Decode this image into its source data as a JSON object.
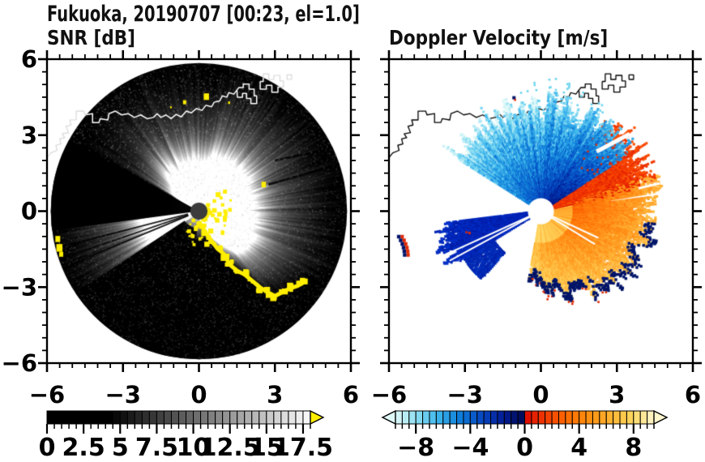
{
  "title": "Fukuoka, 20190707 [00:23, el=1.0]",
  "panels": {
    "left_label": "SNR [dB]",
    "right_label": "Doppler Velocity [m/s]"
  },
  "axes": {
    "range": [
      -6,
      6
    ],
    "major_ticks": [
      -6,
      -3,
      0,
      3,
      6
    ],
    "tick_labels": [
      "−6",
      "−3",
      "0",
      "3",
      "6"
    ],
    "minor_step": 0.5
  },
  "colorbars": {
    "snr": {
      "min": 0,
      "max": 18,
      "segments": 36,
      "tick_values": [
        0,
        2.5,
        5,
        7.5,
        10,
        12.5,
        15,
        17.5
      ],
      "tick_labels": [
        "0",
        "2.5",
        "5",
        "7.5",
        "10",
        "12.5",
        "15",
        "17.5"
      ],
      "over_arrow_color": "#ffee00"
    },
    "velocity": {
      "min": -9.5,
      "max": 9.5,
      "segments": 38,
      "tick_values": [
        -8,
        -4,
        0,
        4,
        8
      ],
      "tick_labels": [
        "−8",
        "−4",
        "0",
        "4",
        "8"
      ],
      "neg_stations": [
        "#dff8f8",
        "#8adef2",
        "#3ab4ec",
        "#0e7cd8",
        "#0748c2",
        "#021c96",
        "#000a50"
      ],
      "pos_stations": [
        "#dc0800",
        "#f23c00",
        "#ff6c00",
        "#ff9010",
        "#ffb430",
        "#ffd75e",
        "#fff6cc"
      ]
    }
  },
  "coastline": {
    "main": [
      [
        -6.3,
        1.75
      ],
      [
        -5.85,
        2.3
      ],
      [
        -5.6,
        2.4
      ],
      [
        -5.65,
        2.6
      ],
      [
        -5.45,
        2.65
      ],
      [
        -5.5,
        2.85
      ],
      [
        -5.3,
        2.9
      ],
      [
        -5.4,
        3.05
      ],
      [
        -5.15,
        3.1
      ],
      [
        -5.25,
        3.35
      ],
      [
        -5.05,
        3.4
      ],
      [
        -5.1,
        3.6
      ],
      [
        -4.85,
        3.6
      ],
      [
        -4.85,
        3.95
      ],
      [
        -4.55,
        3.95
      ],
      [
        -4.5,
        3.8
      ],
      [
        -4.2,
        3.85
      ],
      [
        -4.2,
        3.5
      ],
      [
        -3.95,
        3.5
      ],
      [
        -3.9,
        3.65
      ],
      [
        -3.6,
        3.6
      ],
      [
        -3.55,
        3.85
      ],
      [
        -3.3,
        3.95
      ],
      [
        -3.05,
        3.8
      ],
      [
        -2.8,
        3.85
      ],
      [
        -2.55,
        3.7
      ],
      [
        -2.3,
        3.8
      ],
      [
        -2.05,
        3.65
      ],
      [
        -1.8,
        3.7
      ],
      [
        -1.65,
        3.85
      ],
      [
        -1.5,
        3.7
      ],
      [
        -1.3,
        3.8
      ],
      [
        -1.1,
        3.65
      ],
      [
        -0.9,
        3.82
      ],
      [
        -0.7,
        3.72
      ],
      [
        -0.5,
        3.95
      ],
      [
        -0.3,
        3.88
      ],
      [
        -0.1,
        4.05
      ],
      [
        0.12,
        3.98
      ],
      [
        0.28,
        4.18
      ],
      [
        0.5,
        4.12
      ],
      [
        0.6,
        4.3
      ],
      [
        0.82,
        4.35
      ],
      [
        0.92,
        4.55
      ],
      [
        1.1,
        4.5
      ],
      [
        1.18,
        4.68
      ],
      [
        1.38,
        4.62
      ],
      [
        1.5,
        4.78
      ]
    ],
    "ports": [
      [
        [
          1.5,
          4.78
        ],
        [
          1.52,
          4.5
        ],
        [
          1.72,
          4.5
        ],
        [
          1.72,
          4.65
        ],
        [
          1.88,
          4.65
        ],
        [
          1.88,
          4.45
        ],
        [
          2.05,
          4.45
        ],
        [
          2.05,
          4.25
        ],
        [
          2.28,
          4.25
        ],
        [
          2.28,
          4.55
        ],
        [
          2.18,
          4.55
        ],
        [
          2.18,
          4.82
        ],
        [
          1.98,
          4.82
        ],
        [
          1.98,
          5.02
        ],
        [
          1.75,
          5.02
        ],
        [
          1.75,
          4.88
        ],
        [
          1.58,
          4.88
        ],
        [
          1.5,
          4.78
        ]
      ],
      [
        [
          2.42,
          5.12
        ],
        [
          2.42,
          4.82
        ],
        [
          2.66,
          4.82
        ],
        [
          2.66,
          4.97
        ],
        [
          2.88,
          4.97
        ],
        [
          2.88,
          4.7
        ],
        [
          3.12,
          4.7
        ],
        [
          3.12,
          4.9
        ],
        [
          3.34,
          4.9
        ],
        [
          3.34,
          5.14
        ],
        [
          3.2,
          5.14
        ],
        [
          3.2,
          5.36
        ],
        [
          2.96,
          5.36
        ],
        [
          2.96,
          5.2
        ],
        [
          2.76,
          5.2
        ],
        [
          2.76,
          5.42
        ],
        [
          2.54,
          5.42
        ],
        [
          2.54,
          5.12
        ],
        [
          2.42,
          5.12
        ]
      ],
      [
        [
          3.48,
          5.2
        ],
        [
          3.66,
          5.2
        ],
        [
          3.66,
          5.38
        ],
        [
          3.48,
          5.38
        ],
        [
          3.48,
          5.2
        ]
      ]
    ]
  },
  "chart_data": [
    {
      "type": "heatmap",
      "title": "SNR [dB]",
      "units": "dB",
      "xlim": [
        -6,
        6
      ],
      "ylim": [
        -6,
        6
      ],
      "scan_radius": 5.85,
      "background": "#000000",
      "bright_fans": [
        {
          "a0": -22,
          "a1": 78,
          "peak": 0.8
        },
        {
          "a0": 78,
          "a1": 150,
          "peak": 0.6
        },
        {
          "a0": 187.5,
          "a1": 214,
          "peak": 0.78
        }
      ],
      "se_fan": {
        "a0": -78,
        "a1": -22,
        "peak": 0.85,
        "rmax_points": [
          [
            -96,
            0.8
          ],
          [
            -72,
            1.0
          ],
          [
            -63,
            1.7
          ],
          [
            -60,
            2.4
          ],
          [
            -54,
            3.1
          ],
          [
            -51,
            3.9
          ],
          [
            -48,
            4.5
          ],
          [
            -40,
            4.75
          ],
          [
            -34,
            5.0
          ],
          [
            -27,
            5.5
          ],
          [
            -22,
            5.85
          ]
        ]
      },
      "blocked_sectors": [
        [
          151,
          187.5,
          0
        ],
        [
          213.5,
          264.5,
          0.68
        ],
        [
          -96,
          -76,
          1.05
        ]
      ],
      "shadow_lines": [
        [
          2.75,
          1.05,
          5.85,
          1.95,
          3
        ],
        [
          3.0,
          2.0,
          5.6,
          2.55,
          2.5
        ]
      ],
      "wedge_dark_rays": [
        194.5,
        199,
        202.5
      ],
      "clutter_color": "#ffee00",
      "clutter_arc": [
        [
          0.05,
          -0.5
        ],
        [
          0.3,
          -0.9
        ],
        [
          0.55,
          -1.25
        ],
        [
          0.75,
          -1.5
        ],
        [
          1.0,
          -1.7
        ],
        [
          1.2,
          -2.1
        ],
        [
          1.5,
          -2.35
        ],
        [
          1.8,
          -2.5
        ],
        [
          2.1,
          -2.75
        ],
        [
          2.4,
          -3.0
        ],
        [
          2.7,
          -3.2
        ],
        [
          3.0,
          -3.35
        ],
        [
          3.3,
          -3.2
        ],
        [
          3.6,
          -3.05
        ],
        [
          3.9,
          -2.95
        ],
        [
          4.15,
          -2.8
        ]
      ],
      "clutter_blobs": [
        [
          -5.55,
          -1.1,
          0.12
        ],
        [
          -5.48,
          -1.45,
          0.15
        ],
        [
          -5.42,
          -1.7,
          0.1
        ],
        [
          2.58,
          1.05,
          0.11
        ],
        [
          0.32,
          4.52,
          0.13
        ],
        [
          -0.55,
          4.3,
          0.08
        ],
        [
          1.2,
          4.28,
          0.05
        ],
        [
          -1.1,
          4.1,
          0.04
        ],
        [
          0.95,
          -0.85,
          0.09
        ]
      ],
      "coast_color": "#ffffff",
      "center_dot_color": "#3c3c3c"
    },
    {
      "type": "heatmap",
      "title": "Doppler Velocity [m/s]",
      "units": "m/s",
      "xlim": [
        -6,
        6
      ],
      "ylim": [
        -6,
        6
      ],
      "center_hole_radius": 0.42,
      "blue_fan": {
        "a0": 33,
        "a1": 148,
        "r_in": 0.45,
        "r_out_base": 4.2,
        "r_out_amp": 0.55
      },
      "west_wedge": {
        "a0": 187,
        "a1": 212,
        "r_in": 0.5,
        "r_out_base": 4.15,
        "r_out_amp": 0.4
      },
      "west_lobe": {
        "a0": 212,
        "a1": 229,
        "r0": 2.2,
        "r1": 3.6
      },
      "orange_fan": {
        "a0": -100,
        "a1": 34,
        "a1_outer": 55,
        "rout_points": [
          [
            -100,
            2.6
          ],
          [
            -80,
            3.1
          ],
          [
            -60,
            3.6
          ],
          [
            -40,
            4.1
          ],
          [
            -20,
            4.3
          ],
          [
            0,
            4.35
          ],
          [
            20,
            4.5
          ],
          [
            34,
            4.6
          ],
          [
            55,
            4.6
          ]
        ]
      },
      "orange_body_stations": [
        "#f44400",
        "#ff7208",
        "#ff9018",
        "#ffb034",
        "#ffd058",
        "#ffe88c"
      ],
      "edge_color": "#001468",
      "speck_red": "#e02800",
      "speck_cyan": "#6cd4f0",
      "white_slashes": [
        [
          2.2,
          2.35,
          3.5,
          3.05,
          5
        ],
        [
          3.85,
          0.9,
          4.7,
          1.1,
          3
        ]
      ],
      "white_rays_orange": [
        -25,
        -31.5
      ],
      "white_rays_wedge": [
        204.5,
        208.5
      ],
      "left_edge_mark": [
        [
          -5.62,
          -1.0
        ],
        [
          -5.38,
          -1.8
        ]
      ],
      "coast_color": "#000000"
    }
  ]
}
